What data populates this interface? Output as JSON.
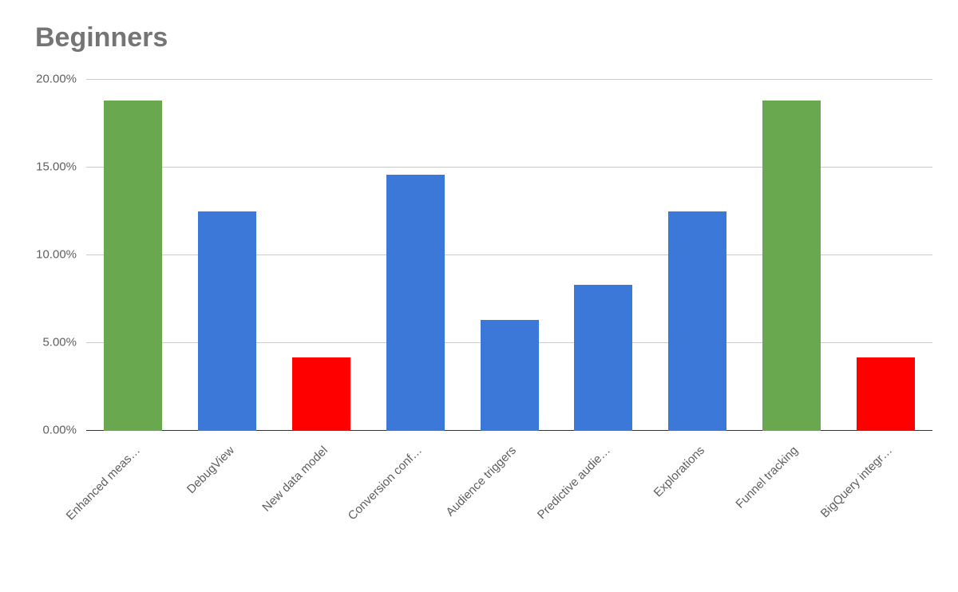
{
  "chart": {
    "type": "bar",
    "title": "Beginners",
    "title_color": "#757575",
    "title_fontsize": 34,
    "background_color": "#ffffff",
    "grid_color": "#cccccc",
    "text_color": "#5f5f5f",
    "label_fontsize": 15,
    "ylim": [
      0,
      20
    ],
    "ytick_step": 5,
    "yticks": [
      {
        "value": 0,
        "label": "0.00%"
      },
      {
        "value": 5,
        "label": "5.00%"
      },
      {
        "value": 10,
        "label": "10.00%"
      },
      {
        "value": 15,
        "label": "15.00%"
      },
      {
        "value": 20,
        "label": "20.00%"
      }
    ],
    "bar_width": 0.62,
    "categories": [
      "Enhanced meas…",
      "DebugView",
      "New data model",
      "Conversion conf…",
      "Audience triggers",
      "Predictive audie…",
      "Explorations",
      "Funnel tracking",
      "BigQuery integr…"
    ],
    "values": [
      18.8,
      12.5,
      4.2,
      14.6,
      6.3,
      8.3,
      12.5,
      18.8,
      4.2
    ],
    "bar_colors": [
      "#6aa84f",
      "#3c78d8",
      "#ff0000",
      "#3c78d8",
      "#3c78d8",
      "#3c78d8",
      "#3c78d8",
      "#6aa84f",
      "#ff0000"
    ]
  }
}
